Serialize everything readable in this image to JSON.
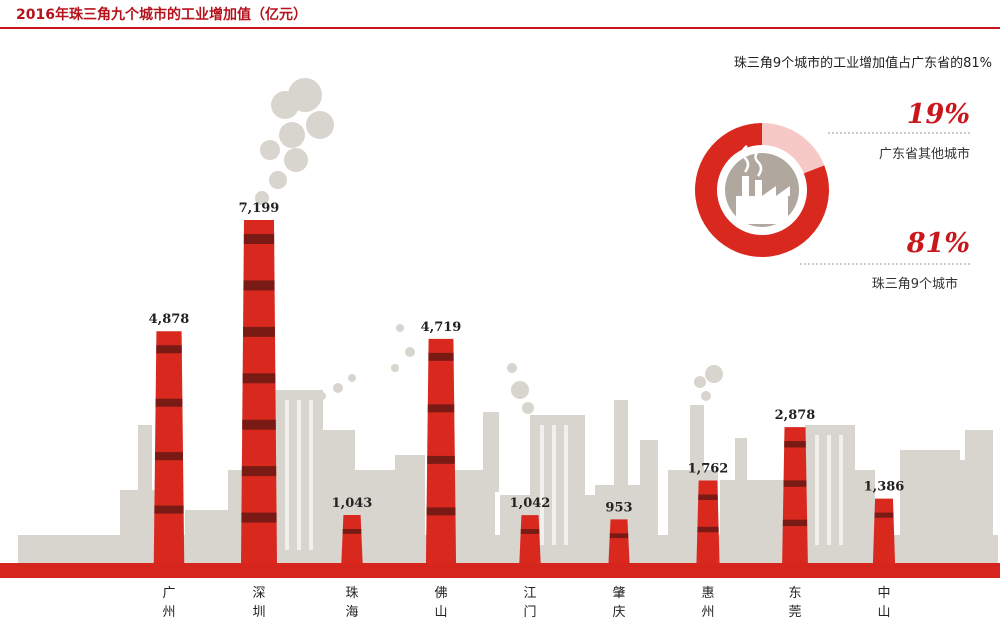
{
  "header": {
    "title": "2016年珠三角九个城市的工业增加值（亿元）"
  },
  "chart_data": {
    "type": "bar",
    "title": "2016年珠三角九个城市的工业增加值（亿元）",
    "categories": [
      "广州",
      "深圳",
      "珠海",
      "佛山",
      "江门",
      "肇庆",
      "惠州",
      "东莞",
      "中山"
    ],
    "values": [
      4878,
      7199,
      1043,
      4719,
      1042,
      953,
      1762,
      2878,
      1386
    ],
    "value_labels": [
      "4,878",
      "7,199",
      "1,043",
      "4,719",
      "1,042",
      "953",
      "1,762",
      "2,878",
      "1,386"
    ],
    "unit": "亿元",
    "colors": {
      "bar": "#d9291f",
      "band": "#7a1a14",
      "skyline": "#d8d4ce",
      "ground": "#d6251c"
    }
  },
  "donut": {
    "note": "珠三角9个城市的工业增加值占广东省的81%",
    "slices": [
      {
        "label": "广东省其他城市",
        "value": 19,
        "pct_label": "19%",
        "color": "#f6c8c6"
      },
      {
        "label": "珠三角9个城市",
        "value": 81,
        "pct_label": "81%",
        "color": "#d9291f"
      }
    ],
    "center_icon": "factory-icon"
  }
}
